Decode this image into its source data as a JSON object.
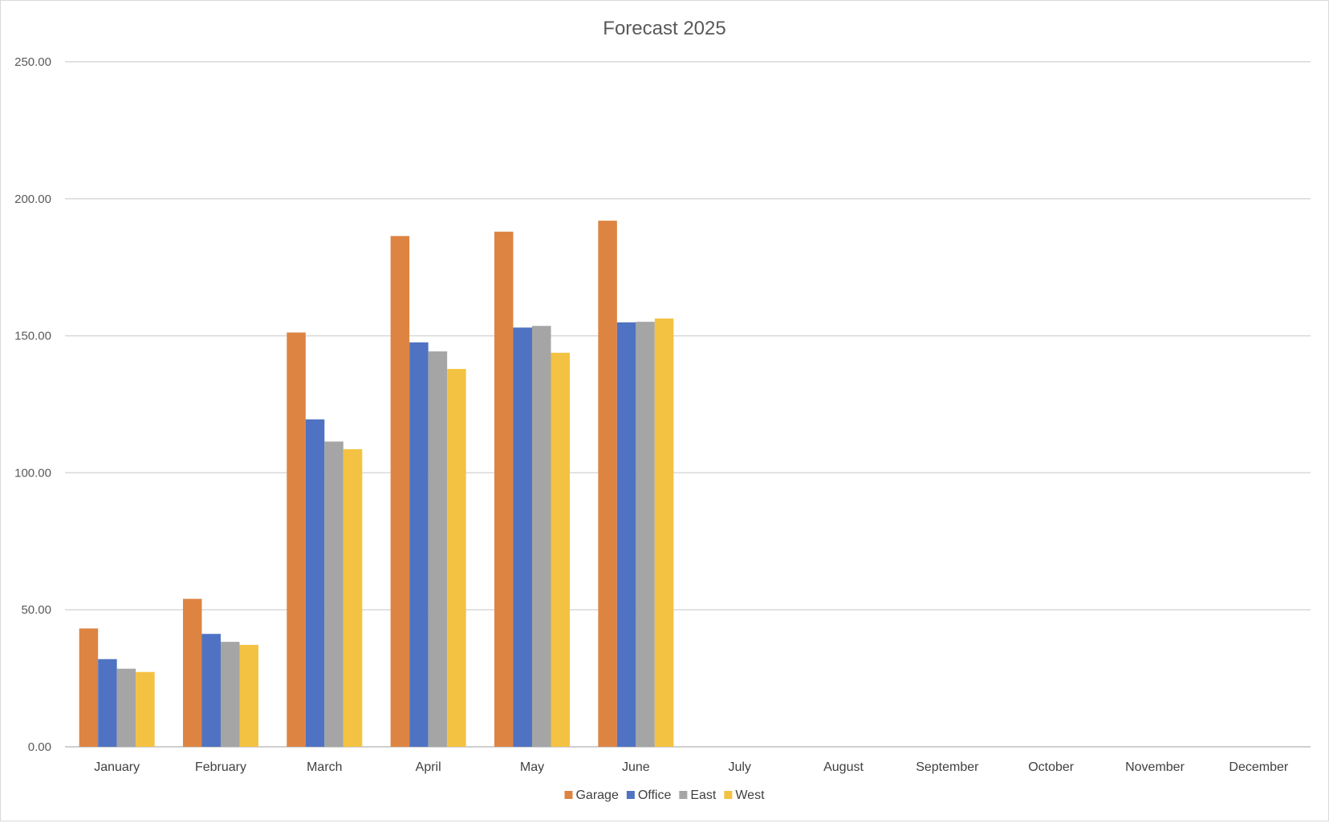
{
  "chart_data": {
    "type": "bar",
    "title": "Forecast 2025",
    "categories": [
      "January",
      "February",
      "March",
      "April",
      "May",
      "June",
      "July",
      "August",
      "September",
      "October",
      "November",
      "December"
    ],
    "ylim": [
      0,
      250
    ],
    "yticks": [
      "0.00",
      "50.00",
      "100.00",
      "150.00",
      "200.00",
      "250.00"
    ],
    "ytick_values": [
      0,
      50,
      100,
      150,
      200,
      250
    ],
    "grid": true,
    "legend_position": "bottom",
    "series": [
      {
        "name": "Garage",
        "color": "#dd8443",
        "values": [
          43.2,
          54.0,
          151.2,
          186.4,
          188.0,
          192.0,
          null,
          null,
          null,
          null,
          null,
          null
        ]
      },
      {
        "name": "Office",
        "color": "#4f73c2",
        "values": [
          32.0,
          41.2,
          119.5,
          147.6,
          153.0,
          154.9,
          null,
          null,
          null,
          null,
          null,
          null
        ]
      },
      {
        "name": "East",
        "color": "#a5a5a5",
        "values": [
          28.5,
          38.3,
          111.4,
          144.3,
          153.6,
          155.1,
          null,
          null,
          null,
          null,
          null,
          null
        ]
      },
      {
        "name": "West",
        "color": "#f4c242",
        "values": [
          27.3,
          37.2,
          108.6,
          137.9,
          143.8,
          156.3,
          null,
          null,
          null,
          null,
          null,
          null
        ]
      }
    ]
  }
}
